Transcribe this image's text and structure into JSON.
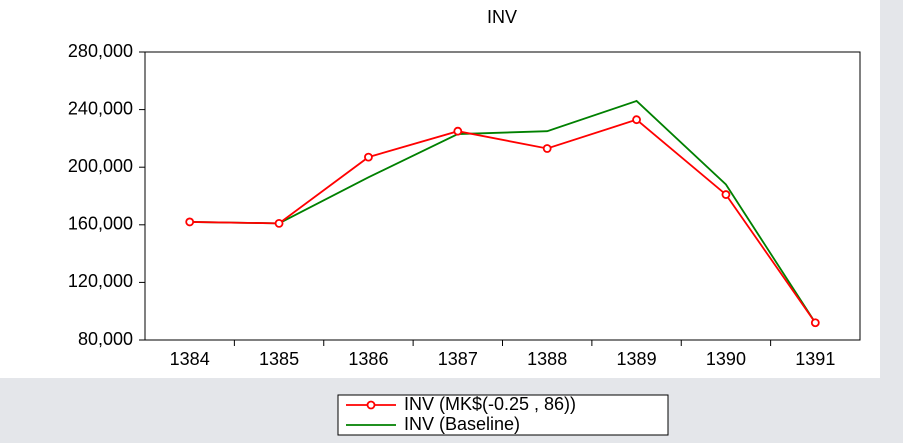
{
  "chart_data": {
    "type": "line",
    "title": "INV",
    "categories": [
      "1384",
      "1385",
      "1386",
      "1387",
      "1388",
      "1389",
      "1390",
      "1391"
    ],
    "series": [
      {
        "name": "INV (MK$(-0.25 , 86))",
        "color": "#ff0000",
        "marker": "circle",
        "values": [
          162000,
          161000,
          207000,
          225000,
          213000,
          233000,
          181000,
          92000
        ]
      },
      {
        "name": "INV (Baseline)",
        "color": "#008000",
        "values": [
          162000,
          161000,
          193000,
          223000,
          225000,
          246000,
          188000,
          92000
        ]
      }
    ],
    "ylim": [
      80000,
      280000
    ],
    "yticks": [
      {
        "value": 80000,
        "label": "80,000"
      },
      {
        "value": 120000,
        "label": "120,000"
      },
      {
        "value": 160000,
        "label": "160,000"
      },
      {
        "value": 200000,
        "label": "200,000"
      },
      {
        "value": 240000,
        "label": "240,000"
      },
      {
        "value": 280000,
        "label": "280,000"
      }
    ],
    "legend": "bottom"
  }
}
